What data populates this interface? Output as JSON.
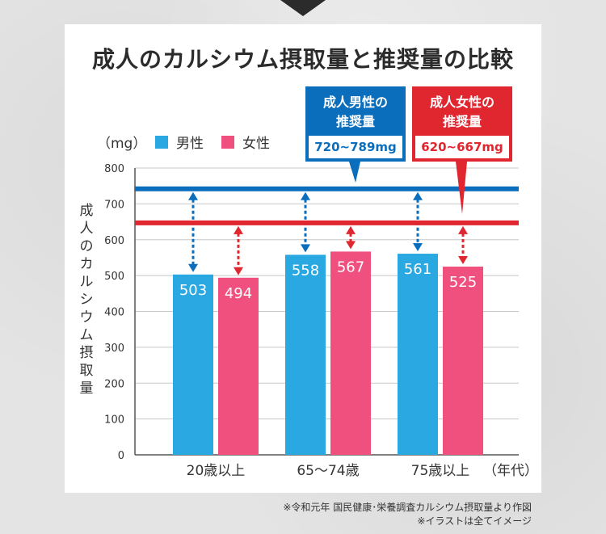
{
  "title": "成人のカルシウム摂取量と推奨量の比較",
  "unit": "（mg）",
  "legend": [
    {
      "label": "男性",
      "color": "#29a8e1"
    },
    {
      "label": "女性",
      "color": "#f0507d"
    }
  ],
  "recommendations": {
    "male": {
      "title_line1": "成人男性の",
      "title_line2": "推奨量",
      "range": "720~789mg",
      "color": "#0a6ebd",
      "line_value": 742
    },
    "female": {
      "title_line1": "成人女性の",
      "title_line2": "推奨量",
      "range": "620~667mg",
      "color": "#e0262f",
      "line_value": 647
    }
  },
  "source_notes": {
    "line1": "※令和元年 国民健康･栄養調査カルシウム摂取量より作図",
    "line2": "※イラストは全てイメージ"
  },
  "chart_data": {
    "type": "bar",
    "title": "成人のカルシウム摂取量と推奨量の比較",
    "ylabel": "成人のカルシウム摂取量",
    "xlabel": "",
    "x_suffix": "（年代）",
    "ylim": [
      0,
      800
    ],
    "yticks": [
      0,
      100,
      200,
      300,
      400,
      500,
      600,
      700,
      800
    ],
    "categories": [
      "20歳以上",
      "65～74歳",
      "75歳以上"
    ],
    "series": [
      {
        "name": "男性",
        "values": [
          503,
          558,
          561
        ],
        "color": "#29a8e1"
      },
      {
        "name": "女性",
        "values": [
          494,
          567,
          525
        ],
        "color": "#f0507d"
      }
    ],
    "grid": true,
    "legend_position": "top-left"
  }
}
